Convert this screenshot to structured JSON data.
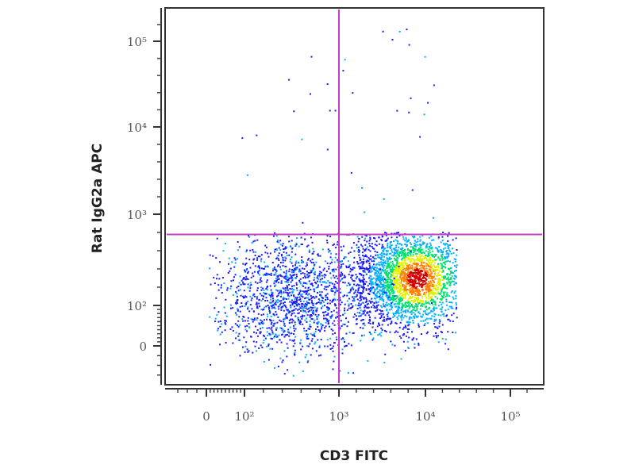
{
  "chart_data": {
    "type": "scatter",
    "subtype": "flow-cytometry pseudocolor density plot",
    "xlabel": "CD3 FITC",
    "ylabel": "Rat IgG2a APC",
    "x_scale": "biexponential (log)",
    "y_scale": "biexponential (log)",
    "x_ticks": [
      {
        "value": 0,
        "label": "0"
      },
      {
        "value": 100,
        "label": "10²"
      },
      {
        "value": 1000,
        "label": "10³"
      },
      {
        "value": 10000,
        "label": "10⁴"
      },
      {
        "value": 100000,
        "label": "10⁵"
      }
    ],
    "y_ticks": [
      {
        "value": 0,
        "label": "0"
      },
      {
        "value": 100,
        "label": "10²"
      },
      {
        "value": 1000,
        "label": "10³"
      },
      {
        "value": 10000,
        "label": "10⁴"
      },
      {
        "value": 100000,
        "label": "10⁵"
      }
    ],
    "gates": {
      "x": 1000,
      "y": 600,
      "color": "#c040c8"
    },
    "populations": [
      {
        "center_x": 8000,
        "center_y": 200,
        "relative_size": 0.62
      },
      {
        "center_x": 300,
        "center_y": 150,
        "relative_size": 0.36
      },
      {
        "center_x": 5000,
        "center_y": 30000,
        "relative_size": 0.02
      }
    ],
    "colormap": [
      "#1a1aff",
      "#00b0ff",
      "#00e070",
      "#e0f000",
      "#ff8000",
      "#d00000"
    ],
    "grid": false
  }
}
